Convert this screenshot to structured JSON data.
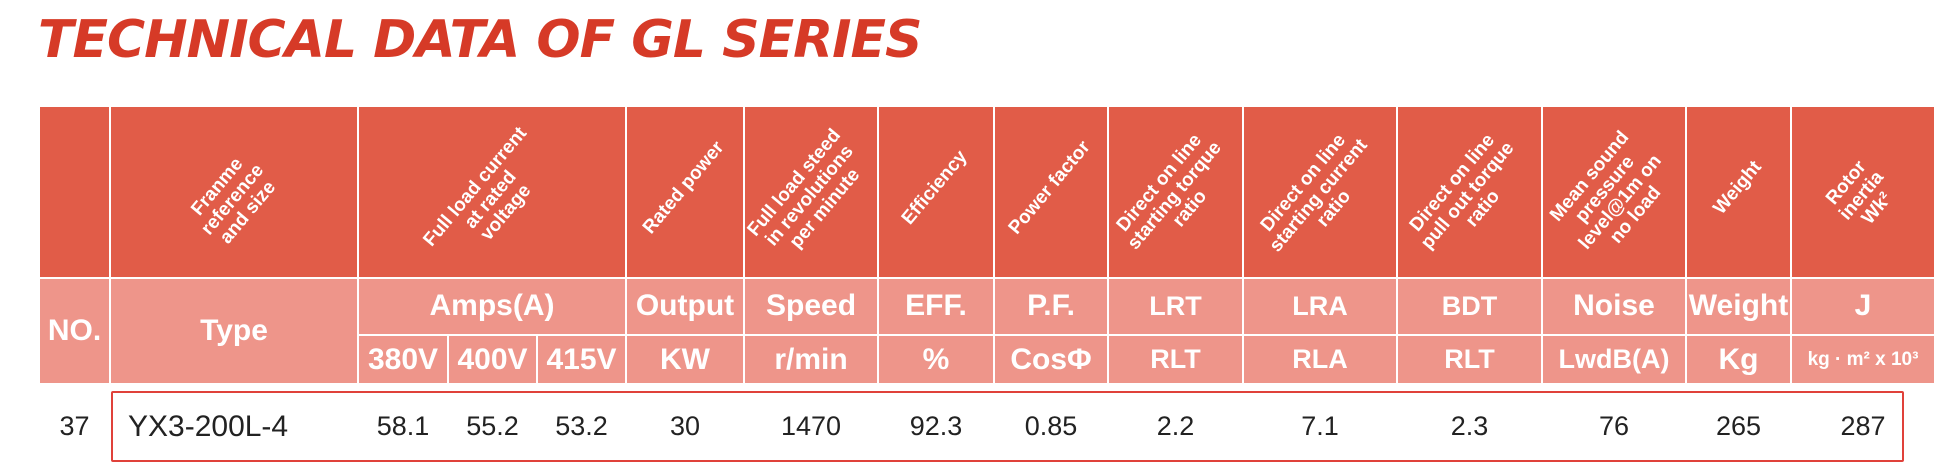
{
  "title": "TECHNICAL DATA OF GL SERIES",
  "descriptions": [
    "Franme\nreference\nand size",
    "Full load current\nat rated\nvoltage",
    "Rated power",
    "Full load steed\nin revolutions\nper minute",
    "Efficiency",
    "Power factor",
    "Direct on line\nstarting torque\nratio",
    "Direct on line\nstarting current\nratio",
    "Direct on line\npull out torque\nratio",
    "Mean sound\npressure\nlevel@1m on\nno load",
    "Weight",
    "Rotor inertia\nWk²"
  ],
  "headers": {
    "no": "NO.",
    "type": "Type",
    "amps": "Amps(A)",
    "output": "Output",
    "speed": "Speed",
    "eff": "EFF.",
    "pf": "P.F.",
    "lrt": "LRT",
    "lra": "LRA",
    "bdt": "BDT",
    "noise": "Noise",
    "weight": "Weight",
    "j": "J"
  },
  "units": {
    "v380": "380V",
    "v400": "400V",
    "v415": "415V",
    "kw": "KW",
    "rmin": "r/min",
    "percent": "%",
    "cos": "CosΦ",
    "rlt1": "RLT",
    "rla": "RLA",
    "rlt2": "RLT",
    "lwdb": "LwdB(A)",
    "kg": "Kg",
    "inertia": "kg · m² x 10³"
  },
  "row": {
    "no": "37",
    "type": "YX3-200L-4",
    "a380": "58.1",
    "a400": "55.2",
    "a415": "53.2",
    "kw": "30",
    "rpm": "1470",
    "eff": "92.3",
    "pf": "0.85",
    "lrt": "2.2",
    "lra": "7.1",
    "bdt": "2.3",
    "noise": "76",
    "weight": "265",
    "j": "287"
  }
}
